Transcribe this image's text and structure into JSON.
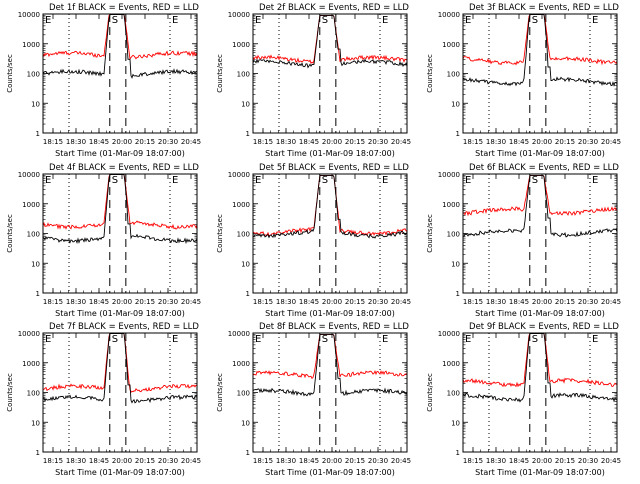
{
  "figure": {
    "background": "#ffffff"
  },
  "chart_data": [
    {
      "type": "line",
      "title": "Det 1f BLACK = Events, RED = LLD",
      "xlabel": "Start Time (01-Mar-09 18:07:00)",
      "ylabel": "Counts/sec",
      "x_ticks": [
        "18:15",
        "18:30",
        "18:45",
        "20:00",
        "20:15",
        "20:30",
        "20:45"
      ],
      "y_ticks": [
        "1",
        "10",
        "100",
        "1000",
        "10000"
      ],
      "ylim": [
        1,
        10000
      ],
      "y_scale": "log",
      "markers": [
        {
          "label": "E",
          "style": "dotted",
          "t": 0.0
        },
        {
          "label": "S",
          "style": "dashed",
          "t": 0.43
        },
        {
          "label": "",
          "style": "dashed",
          "t": 0.54
        },
        {
          "label": "E",
          "style": "dotted",
          "t": 0.8
        }
      ],
      "series": [
        {
          "color": "#ff0000",
          "base": 420,
          "peak": 14000
        },
        {
          "color": "#000000",
          "base": 100,
          "peak": 14000
        }
      ]
    },
    {
      "type": "line",
      "title": "Det 2f BLACK = Events, RED = LLD",
      "xlabel": "Start Time (01-Mar-09 18:07:00)",
      "ylabel": "Counts/sec",
      "x_ticks": [
        "18:15",
        "18:30",
        "18:45",
        "20:00",
        "20:15",
        "20:30",
        "20:45"
      ],
      "y_ticks": [
        "1",
        "10",
        "100",
        "1000",
        "10000"
      ],
      "ylim": [
        1,
        10000
      ],
      "y_scale": "log",
      "markers": [
        {
          "label": "E",
          "style": "dotted",
          "t": 0.0
        },
        {
          "label": "S",
          "style": "dashed",
          "t": 0.43
        },
        {
          "label": "",
          "style": "dashed",
          "t": 0.54
        },
        {
          "label": "E",
          "style": "dotted",
          "t": 0.8
        }
      ],
      "series": [
        {
          "color": "#ff0000",
          "base": 300,
          "peak": 9000
        },
        {
          "color": "#000000",
          "base": 220,
          "peak": 9000
        }
      ]
    },
    {
      "type": "line",
      "title": "Det 3f BLACK = Events, RED = LLD",
      "xlabel": "Start Time (01-Mar-09 18:07:00)",
      "ylabel": "Counts/sec",
      "x_ticks": [
        "18:15",
        "18:30",
        "18:45",
        "20:00",
        "20:15",
        "20:30",
        "20:45"
      ],
      "y_ticks": [
        "1",
        "10",
        "100",
        "1000",
        "10000"
      ],
      "ylim": [
        1,
        10000
      ],
      "y_scale": "log",
      "markers": [
        {
          "label": "E",
          "style": "dotted",
          "t": 0.0
        },
        {
          "label": "S",
          "style": "dashed",
          "t": 0.43
        },
        {
          "label": "",
          "style": "dashed",
          "t": 0.54
        },
        {
          "label": "E",
          "style": "dotted",
          "t": 0.8
        }
      ],
      "series": [
        {
          "color": "#ff0000",
          "base": 280,
          "peak": 14000
        },
        {
          "color": "#000000",
          "base": 55,
          "peak": 14000
        }
      ]
    },
    {
      "type": "line",
      "title": "Det 4f BLACK = Events, RED = LLD",
      "xlabel": "Start Time (01-Mar-09 18:07:00)",
      "ylabel": "Counts/sec",
      "x_ticks": [
        "18:15",
        "18:30",
        "18:45",
        "20:00",
        "20:15",
        "20:30",
        "20:45"
      ],
      "y_ticks": [
        "1",
        "10",
        "100",
        "1000",
        "10000"
      ],
      "ylim": [
        1,
        10000
      ],
      "y_scale": "log",
      "markers": [
        {
          "label": "E",
          "style": "dotted",
          "t": 0.0
        },
        {
          "label": "S",
          "style": "dashed",
          "t": 0.43
        },
        {
          "label": "",
          "style": "dashed",
          "t": 0.54
        },
        {
          "label": "E",
          "style": "dotted",
          "t": 0.8
        }
      ],
      "series": [
        {
          "color": "#ff0000",
          "base": 200,
          "peak": 14000
        },
        {
          "color": "#000000",
          "base": 70,
          "peak": 14000
        }
      ]
    },
    {
      "type": "line",
      "title": "Det 5f BLACK = Events, RED = LLD",
      "xlabel": "Start Time (01-Mar-09 18:07:00)",
      "ylabel": "Counts/sec",
      "x_ticks": [
        "18:15",
        "18:30",
        "18:45",
        "20:00",
        "20:15",
        "20:30",
        "20:45"
      ],
      "y_ticks": [
        "1",
        "10",
        "100",
        "1000",
        "10000"
      ],
      "ylim": [
        1,
        10000
      ],
      "y_scale": "log",
      "markers": [
        {
          "label": "E",
          "style": "dotted",
          "t": 0.0
        },
        {
          "label": "S",
          "style": "dashed",
          "t": 0.43
        },
        {
          "label": "",
          "style": "dashed",
          "t": 0.54
        },
        {
          "label": "E",
          "style": "dotted",
          "t": 0.8
        }
      ],
      "series": [
        {
          "color": "#ff0000",
          "base": 120,
          "peak": 9000
        },
        {
          "color": "#000000",
          "base": 100,
          "peak": 9000
        }
      ]
    },
    {
      "type": "line",
      "title": "Det 6f BLACK = Events, RED = LLD",
      "xlabel": "Start Time (01-Mar-09 18:07:00)",
      "ylabel": "Counts/sec",
      "x_ticks": [
        "18:15",
        "18:30",
        "18:45",
        "20:00",
        "20:15",
        "20:30",
        "20:45"
      ],
      "y_ticks": [
        "1",
        "10",
        "100",
        "1000",
        "10000"
      ],
      "ylim": [
        1,
        10000
      ],
      "y_scale": "log",
      "markers": [
        {
          "label": "E",
          "style": "dotted",
          "t": 0.0
        },
        {
          "label": "S",
          "style": "dashed",
          "t": 0.43
        },
        {
          "label": "",
          "style": "dashed",
          "t": 0.54
        },
        {
          "label": "E",
          "style": "dotted",
          "t": 0.8
        }
      ],
      "series": [
        {
          "color": "#ff0000",
          "base": 580,
          "peak": 9000
        },
        {
          "color": "#000000",
          "base": 110,
          "peak": 9000
        }
      ]
    },
    {
      "type": "line",
      "title": "Det 7f BLACK = Events, RED = LLD",
      "xlabel": "Start Time (01-Mar-09 18:07:00)",
      "ylabel": "Counts/sec",
      "x_ticks": [
        "18:15",
        "18:30",
        "18:45",
        "20:00",
        "20:15",
        "20:30",
        "20:45"
      ],
      "y_ticks": [
        "1",
        "10",
        "100",
        "1000",
        "10000"
      ],
      "ylim": [
        1,
        10000
      ],
      "y_scale": "log",
      "markers": [
        {
          "label": "E",
          "style": "dotted",
          "t": 0.0
        },
        {
          "label": "S",
          "style": "dashed",
          "t": 0.43
        },
        {
          "label": "",
          "style": "dashed",
          "t": 0.54
        },
        {
          "label": "E",
          "style": "dotted",
          "t": 0.8
        }
      ],
      "series": [
        {
          "color": "#ff0000",
          "base": 140,
          "peak": 14000
        },
        {
          "color": "#000000",
          "base": 60,
          "peak": 14000
        }
      ]
    },
    {
      "type": "line",
      "title": "Det 8f BLACK = Events, RED = LLD",
      "xlabel": "Start Time (01-Mar-09 18:07:00)",
      "ylabel": "Counts/sec",
      "x_ticks": [
        "18:15",
        "18:30",
        "18:45",
        "20:00",
        "20:15",
        "20:30",
        "20:45"
      ],
      "y_ticks": [
        "1",
        "10",
        "100",
        "1000",
        "10000"
      ],
      "ylim": [
        1,
        10000
      ],
      "y_scale": "log",
      "markers": [
        {
          "label": "E",
          "style": "dotted",
          "t": 0.0
        },
        {
          "label": "S",
          "style": "dashed",
          "t": 0.43
        },
        {
          "label": "",
          "style": "dashed",
          "t": 0.54
        },
        {
          "label": "E",
          "style": "dotted",
          "t": 0.8
        }
      ],
      "series": [
        {
          "color": "#ff0000",
          "base": 400,
          "peak": 9000
        },
        {
          "color": "#000000",
          "base": 100,
          "peak": 9000
        }
      ]
    },
    {
      "type": "line",
      "title": "Det 9f BLACK = Events, RED = LLD",
      "xlabel": "Start Time (01-Mar-09 18:07:00)",
      "ylabel": "Counts/sec",
      "x_ticks": [
        "18:15",
        "18:30",
        "18:45",
        "20:00",
        "20:15",
        "20:30",
        "20:45"
      ],
      "y_ticks": [
        "1",
        "10",
        "100",
        "1000",
        "10000"
      ],
      "ylim": [
        1,
        10000
      ],
      "y_scale": "log",
      "markers": [
        {
          "label": "E",
          "style": "dotted",
          "t": 0.0
        },
        {
          "label": "S",
          "style": "dashed",
          "t": 0.43
        },
        {
          "label": "",
          "style": "dashed",
          "t": 0.54
        },
        {
          "label": "E",
          "style": "dotted",
          "t": 0.8
        }
      ],
      "series": [
        {
          "color": "#ff0000",
          "base": 220,
          "peak": 14000
        },
        {
          "color": "#000000",
          "base": 70,
          "peak": 14000
        }
      ]
    }
  ]
}
